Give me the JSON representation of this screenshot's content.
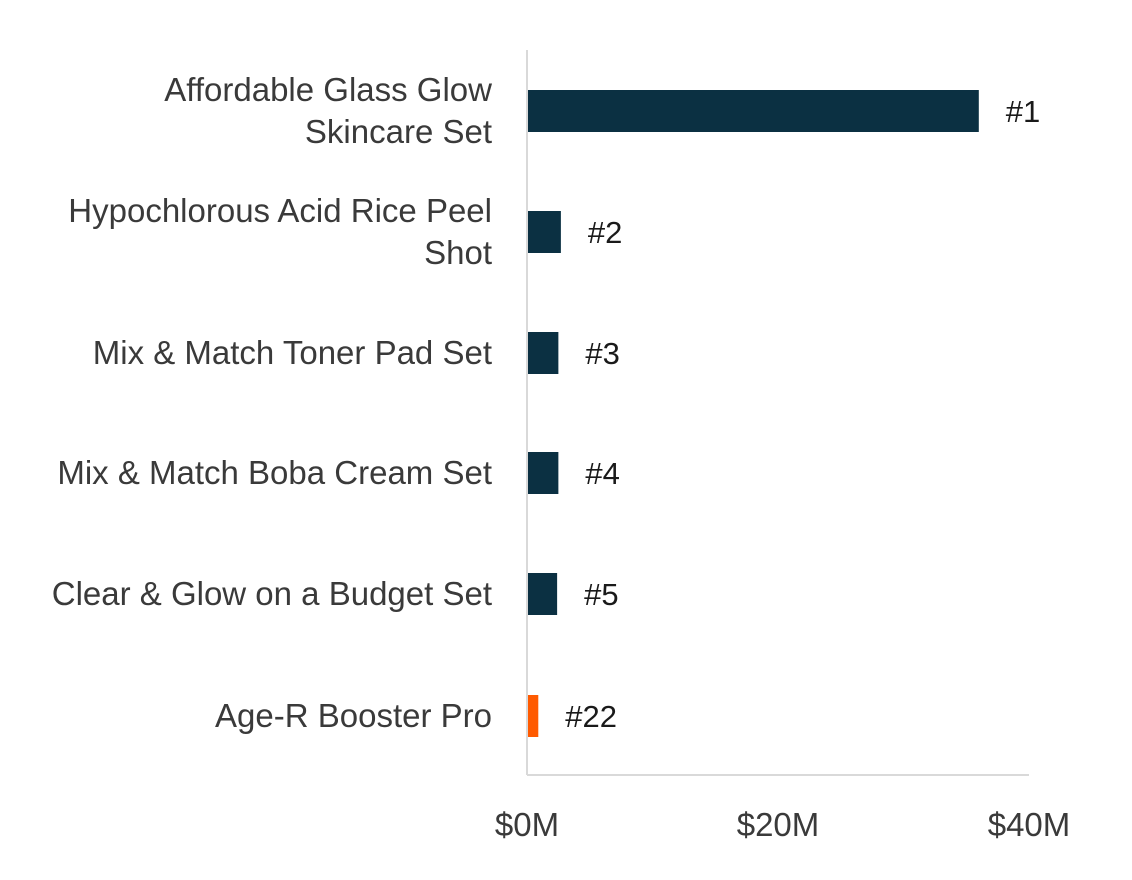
{
  "chart_data": {
    "type": "bar",
    "orientation": "horizontal",
    "categories": [
      [
        "Affordable Glass Glow",
        "Skincare Set"
      ],
      [
        "Hypochlorous Acid Rice Peel",
        "Shot"
      ],
      [
        "Mix & Match Toner Pad Set"
      ],
      [
        "Mix & Match Boba Cream Set"
      ],
      [
        "Clear & Glow on a Budget Set"
      ],
      [
        "Age-R Booster Pro"
      ]
    ],
    "values": [
      36,
      2.7,
      2.5,
      2.5,
      2.4,
      0.9
    ],
    "data_labels": [
      "#1",
      "#2",
      "#3",
      "#4",
      "#5",
      "#22"
    ],
    "highlight_index": 5,
    "xlim": [
      0,
      40
    ],
    "x_ticks": [
      0,
      20,
      40
    ],
    "x_tick_labels": [
      "$0M",
      "$20M",
      "$40M"
    ],
    "title": "",
    "xlabel": "",
    "ylabel": "",
    "grid": false,
    "colors": {
      "bar": "#0b3042",
      "highlight": "#ff5a00",
      "axis": "#d9d9d9"
    }
  }
}
